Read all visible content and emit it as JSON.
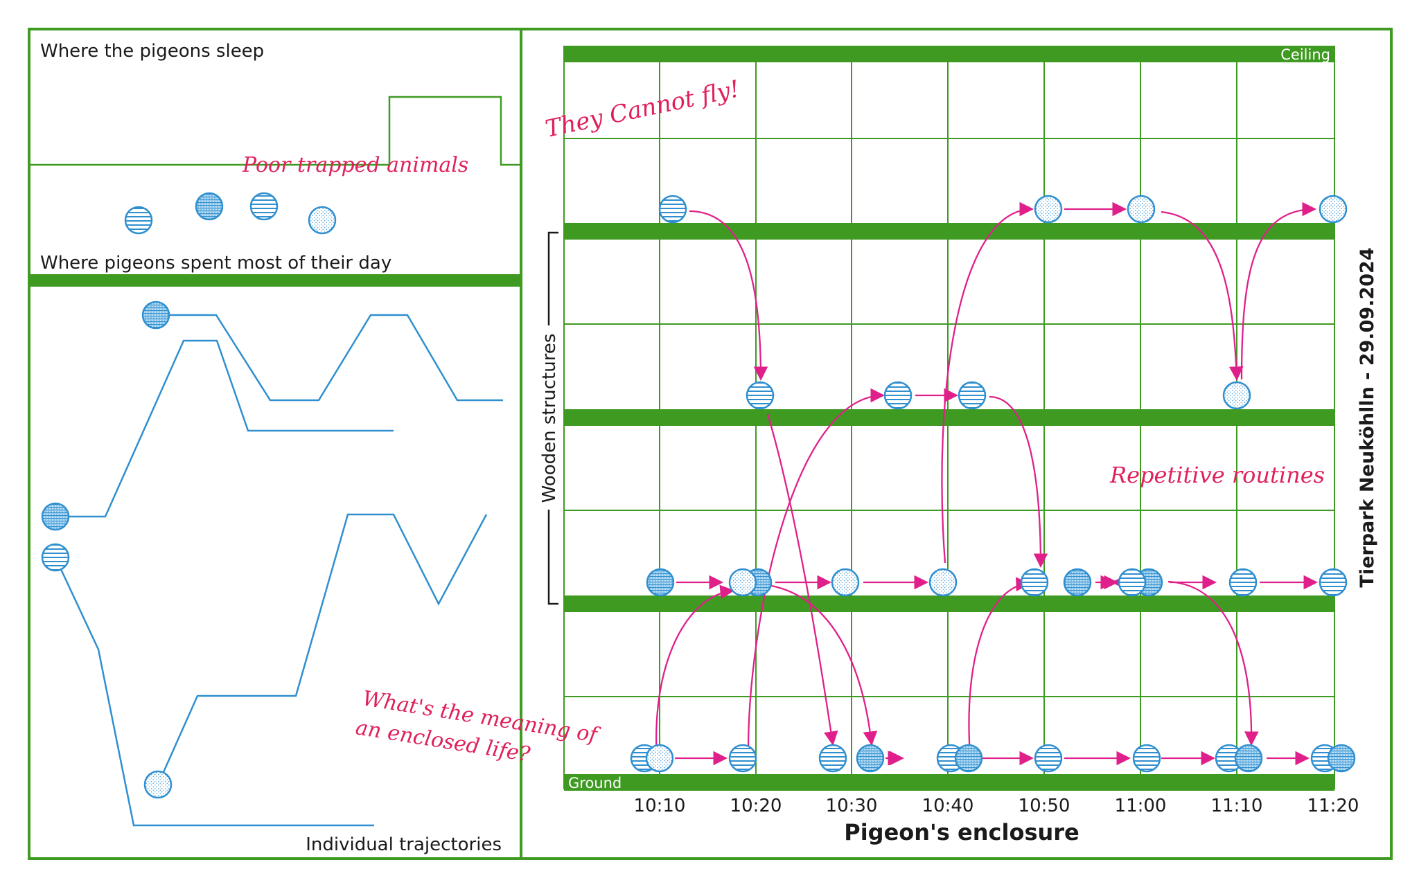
{
  "left_panel": {
    "sleep_title": "Where the pigeons sleep",
    "day_title": "Where pigeons spent most of their day",
    "trajectories_label": "Individual trajectories",
    "note_trapped": "Poor trapped animals"
  },
  "main": {
    "title": "Pigeon's enclosure",
    "ceiling_label": "Ceiling",
    "ground_label": "Ground",
    "structures_label": "Wooden structures",
    "side_label": "Tierpark Neuköhlln - 29.09.2024",
    "note_fly": "They Cannot fly!",
    "note_routines": "Repetitive routines",
    "note_meaning_1": "What's the meaning of",
    "note_meaning_2": "an enclosed life?",
    "time_ticks": [
      "10:10",
      "10:20",
      "10:30",
      "10:40",
      "10:50",
      "11:00",
      "11:10",
      "11:20"
    ]
  },
  "colors": {
    "frame_green": "#3f9a22",
    "pigeon_blue": "#2f8fd0",
    "arrow_pink": "#e0208a",
    "note_red": "#e0205a"
  }
}
